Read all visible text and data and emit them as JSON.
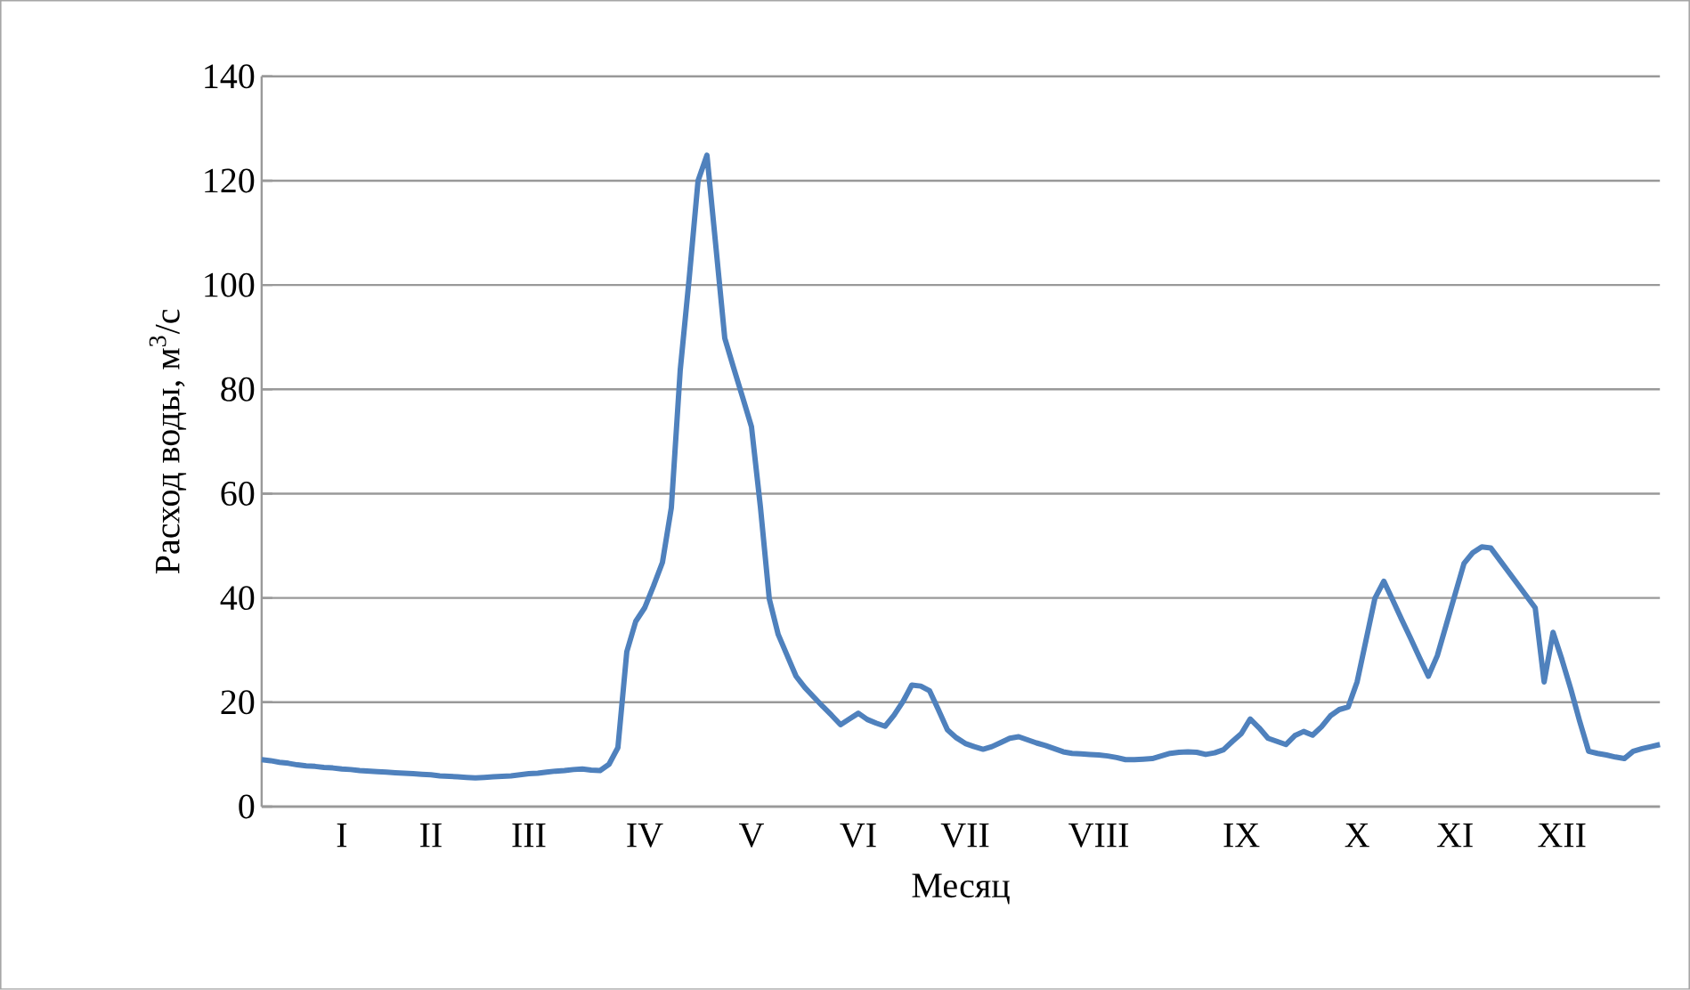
{
  "chart_data": {
    "type": "line",
    "xlabel": "Месяц",
    "ylabel": "Расход воды, м$^{3}$/с",
    "categories": [
      null,
      null,
      null,
      null,
      null,
      null,
      null,
      null,
      null,
      "I",
      null,
      null,
      null,
      null,
      null,
      null,
      null,
      null,
      null,
      "II",
      null,
      null,
      null,
      null,
      null,
      null,
      null,
      null,
      null,
      null,
      "III",
      null,
      null,
      null,
      null,
      null,
      null,
      null,
      null,
      null,
      null,
      null,
      null,
      "IV",
      null,
      null,
      null,
      null,
      null,
      null,
      null,
      null,
      null,
      null,
      null,
      "V",
      null,
      null,
      null,
      null,
      null,
      null,
      null,
      null,
      null,
      null,
      null,
      "VI",
      null,
      null,
      null,
      null,
      null,
      null,
      null,
      null,
      null,
      null,
      null,
      "VII",
      null,
      null,
      null,
      null,
      null,
      null,
      null,
      null,
      null,
      null,
      null,
      null,
      null,
      null,
      "VIII",
      null,
      null,
      null,
      null,
      null,
      null,
      null,
      null,
      null,
      null,
      null,
      null,
      null,
      null,
      null,
      "IX",
      null,
      null,
      null,
      null,
      null,
      null,
      null,
      null,
      null,
      null,
      null,
      null,
      "X",
      null,
      null,
      null,
      null,
      null,
      null,
      null,
      null,
      null,
      null,
      "XI",
      null,
      null,
      null,
      null,
      null,
      null,
      null,
      null,
      null,
      null,
      null,
      "XII",
      null,
      null,
      null,
      null,
      null,
      null,
      null,
      null,
      null,
      null,
      null
    ],
    "ylim": [
      0,
      140
    ],
    "yticks": [
      0,
      20,
      40,
      60,
      80,
      100,
      120,
      140
    ],
    "grid": "y",
    "marker": "none",
    "line_style": "solid",
    "series": [
      {
        "color": "#4f81bd",
        "values": [
          9.0,
          8.8,
          8.5,
          8.3,
          8.0,
          7.8,
          7.7,
          7.5,
          7.4,
          7.2,
          7.1,
          6.9,
          6.8,
          6.7,
          6.6,
          6.5,
          6.4,
          6.3,
          6.2,
          6.1,
          5.9,
          5.8,
          5.7,
          5.6,
          5.5,
          5.6,
          5.7,
          5.8,
          5.9,
          6.1,
          6.3,
          6.4,
          6.6,
          6.8,
          6.9,
          7.1,
          7.2,
          7.0,
          6.9,
          8.1,
          11.3,
          29.7,
          35.5,
          38.1,
          42.3,
          46.8,
          57.3,
          83.7,
          101.2,
          120.0,
          124.9,
          107.4,
          89.8,
          84.1,
          78.5,
          72.8,
          57.5,
          39.8,
          33.0,
          29.0,
          25.0,
          22.8,
          21.0,
          19.2,
          17.5,
          15.7,
          16.8,
          17.9,
          16.7,
          16.0,
          15.4,
          17.5,
          20.1,
          23.3,
          23.1,
          22.2,
          18.5,
          14.7,
          13.2,
          12.1,
          11.5,
          11.0,
          11.5,
          12.3,
          13.1,
          13.4,
          12.8,
          12.2,
          11.7,
          11.1,
          10.5,
          10.2,
          10.1,
          10.0,
          9.9,
          9.7,
          9.4,
          9.0,
          9.0,
          9.1,
          9.2,
          9.7,
          10.2,
          10.4,
          10.5,
          10.4,
          10.0,
          10.3,
          10.9,
          12.5,
          14.0,
          16.8,
          15.1,
          13.1,
          12.5,
          11.9,
          13.6,
          14.4,
          13.7,
          15.3,
          17.4,
          18.6,
          19.1,
          23.9,
          31.9,
          39.9,
          43.2,
          39.6,
          35.9,
          32.3,
          28.6,
          25.0,
          28.9,
          34.8,
          40.7,
          46.6,
          48.7,
          49.8,
          49.6,
          47.3,
          45.0,
          42.7,
          40.4,
          38.1,
          23.9,
          33.4,
          28.2,
          22.5,
          16.3,
          10.6,
          10.2,
          9.9,
          9.5,
          9.2,
          10.6,
          11.1,
          11.5,
          11.9
        ]
      }
    ]
  }
}
